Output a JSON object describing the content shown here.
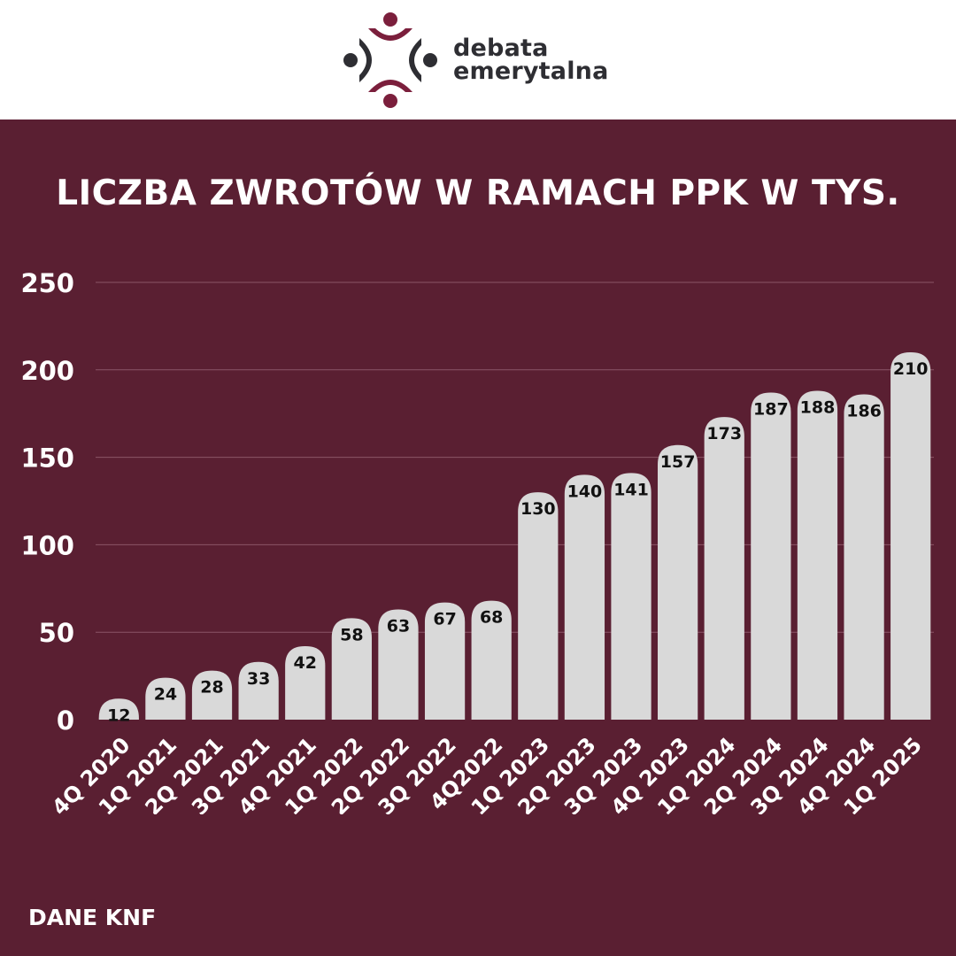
{
  "brand": {
    "line1": "debata",
    "line2": "emerytalna",
    "logo_colors": {
      "maroon": "#7b1f3c",
      "dark": "#2e2e33"
    }
  },
  "colors": {
    "background": "#5a1f32",
    "bar": "#d9d9d9",
    "bar_label": "#111111",
    "grid": "#8a5567",
    "text": "#ffffff"
  },
  "source_label": "DANE KNF",
  "chart_data": {
    "type": "bar",
    "title": "LICZBA ZWROTÓW W RAMACH PPK W TYS.",
    "xlabel": "",
    "ylabel": "",
    "categories": [
      "4Q 2020",
      "1Q 2021",
      "2Q 2021",
      "3Q 2021",
      "4Q 2021",
      "1Q 2022",
      "2Q 2022",
      "3Q 2022",
      "4Q2022",
      "1Q 2023",
      "2Q 2023",
      "3Q 2023",
      "4Q 2023",
      "1Q 2024",
      "2Q 2024",
      "3Q 2024",
      "4Q 2024",
      "1Q 2025"
    ],
    "values": [
      12,
      24,
      28,
      33,
      42,
      58,
      63,
      67,
      68,
      130,
      140,
      141,
      157,
      173,
      187,
      188,
      186,
      210
    ],
    "ylim": [
      0,
      250
    ],
    "yticks": [
      0,
      50,
      100,
      150,
      200,
      250
    ],
    "grid": true,
    "data_labels": true
  }
}
